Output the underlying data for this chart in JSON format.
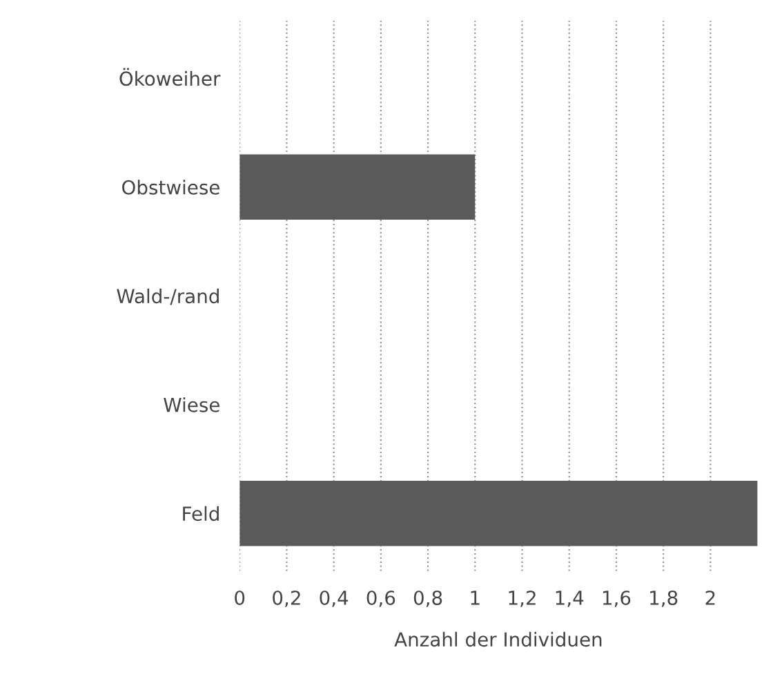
{
  "chart_data": {
    "type": "bar",
    "orientation": "horizontal",
    "xlabel": "Anzahl der Individuen",
    "categories": [
      "Ökoweiher",
      "Obstwiese",
      "Wald-/rand",
      "Wiese",
      "Feld"
    ],
    "values": [
      0,
      1,
      0,
      0,
      2.2
    ],
    "color": "#5a5a5a",
    "xlim": [
      0,
      2.2
    ],
    "xticks": [
      {
        "value": 0,
        "label": "0"
      },
      {
        "value": 0.2,
        "label": "0,2"
      },
      {
        "value": 0.4,
        "label": "0,4"
      },
      {
        "value": 0.6,
        "label": "0,6"
      },
      {
        "value": 0.8,
        "label": "0,8"
      },
      {
        "value": 1,
        "label": "1"
      },
      {
        "value": 1.2,
        "label": "1,2"
      },
      {
        "value": 1.4,
        "label": "1,4"
      },
      {
        "value": 1.6,
        "label": "1,6"
      },
      {
        "value": 1.8,
        "label": "1,8"
      },
      {
        "value": 2,
        "label": "2"
      }
    ],
    "grid": "x"
  }
}
